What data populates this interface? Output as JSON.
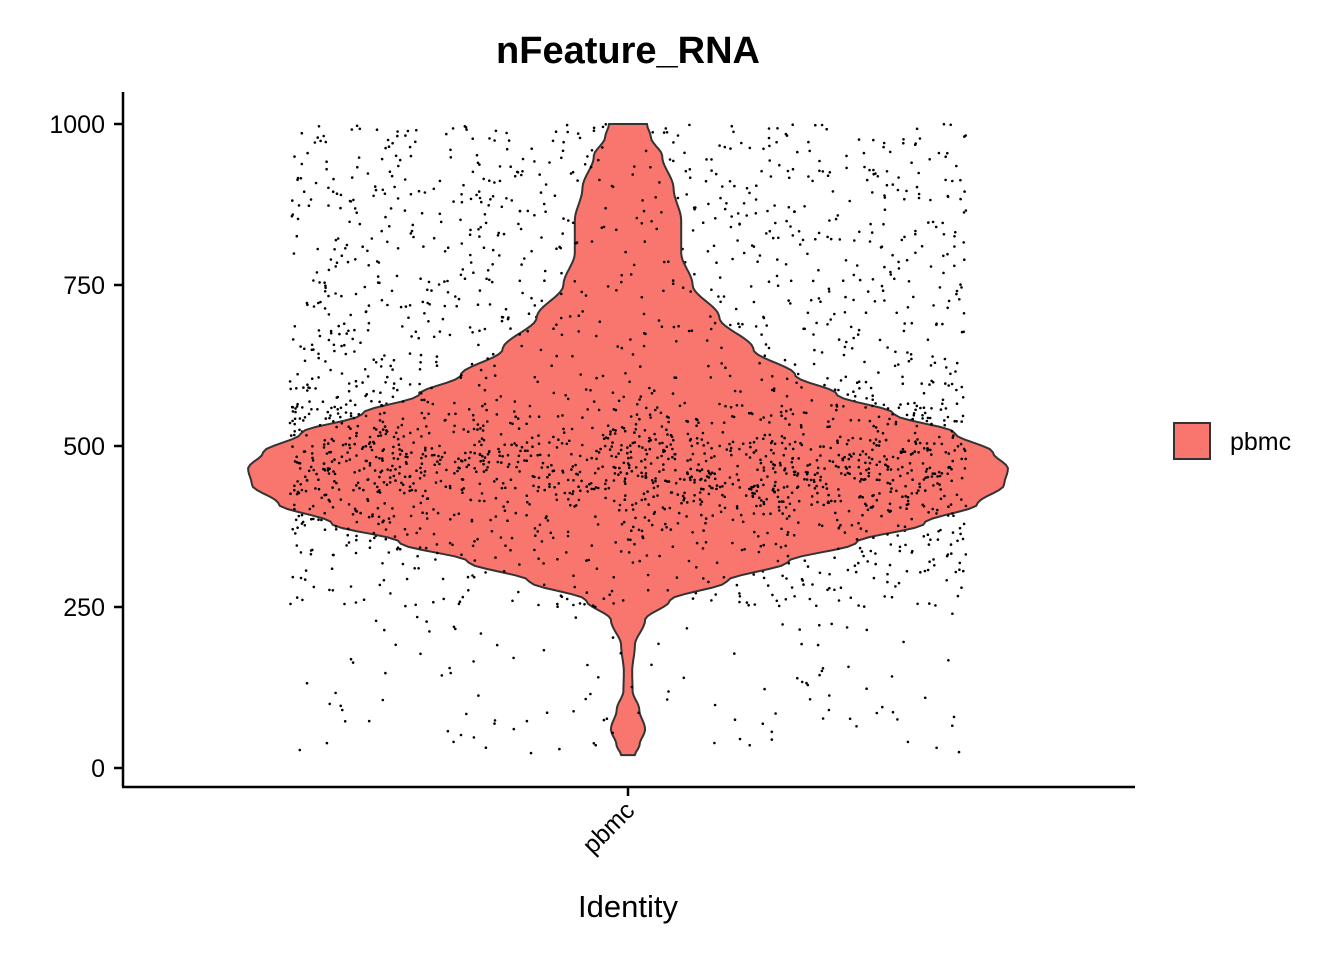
{
  "chart_data": {
    "type": "violin",
    "title": "nFeature_RNA",
    "xlabel": "Identity",
    "ylabel": "",
    "categories": [
      "pbmc"
    ],
    "ylim": [
      -30,
      1050
    ],
    "yticks": [
      0,
      250,
      500,
      750,
      1000
    ],
    "ytick_labels": [
      "0",
      "250",
      "500",
      "750",
      "1000"
    ],
    "grid": false,
    "legend": {
      "position": "right",
      "entries": [
        "pbmc"
      ]
    },
    "colors": {
      "fill": "#F8766D",
      "outline": "#333333",
      "points": "#000000"
    },
    "violin": {
      "min": 20,
      "max": 1000,
      "median": 470,
      "density_profile": [
        [
          20,
          0.018
        ],
        [
          35,
          0.03
        ],
        [
          60,
          0.045
        ],
        [
          90,
          0.03
        ],
        [
          120,
          0.012
        ],
        [
          150,
          0.011
        ],
        [
          190,
          0.018
        ],
        [
          230,
          0.045
        ],
        [
          260,
          0.11
        ],
        [
          290,
          0.26
        ],
        [
          320,
          0.42
        ],
        [
          350,
          0.6
        ],
        [
          380,
          0.78
        ],
        [
          410,
          0.92
        ],
        [
          440,
          0.99
        ],
        [
          465,
          1.0
        ],
        [
          490,
          0.96
        ],
        [
          520,
          0.86
        ],
        [
          550,
          0.7
        ],
        [
          580,
          0.55
        ],
        [
          610,
          0.44
        ],
        [
          650,
          0.33
        ],
        [
          700,
          0.24
        ],
        [
          750,
          0.17
        ],
        [
          800,
          0.14
        ],
        [
          850,
          0.14
        ],
        [
          900,
          0.12
        ],
        [
          950,
          0.09
        ],
        [
          980,
          0.06
        ],
        [
          1000,
          0.05
        ]
      ]
    },
    "points": {
      "count": 4000,
      "y_range": [
        20,
        1000
      ],
      "distribution": "concentrated around 450-500, sparse tail below 250"
    }
  },
  "legend": {
    "label": "pbmc"
  }
}
